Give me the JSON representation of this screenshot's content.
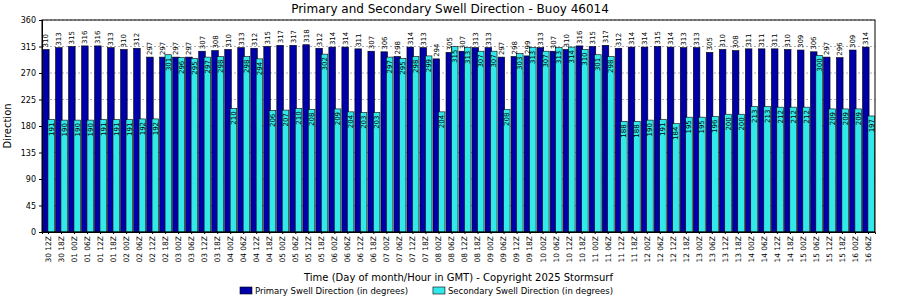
{
  "chart_data": {
    "type": "bar",
    "title": "Primary and Secondary Swell Direction - Buoy 46014",
    "x_label": "Time (Day of month/Hour in GMT) - Copyright 2025 Stormsurf",
    "y_label": "Direction",
    "categories": [
      "30 12Z",
      "30 18Z",
      "01 00Z",
      "01 06Z",
      "01 12Z",
      "01 18Z",
      "02 00Z",
      "02 06Z",
      "02 12Z",
      "02 18Z",
      "03 00Z",
      "03 06Z",
      "03 12Z",
      "03 18Z",
      "04 00Z",
      "04 06Z",
      "04 12Z",
      "04 18Z",
      "05 00Z",
      "05 06Z",
      "05 12Z",
      "05 18Z",
      "06 00Z",
      "06 06Z",
      "06 12Z",
      "06 18Z",
      "07 00Z",
      "07 06Z",
      "07 12Z",
      "07 18Z",
      "08 00Z",
      "08 06Z",
      "08 12Z",
      "08 18Z",
      "09 00Z",
      "09 06Z",
      "09 12Z",
      "09 18Z",
      "10 00Z",
      "10 06Z",
      "10 12Z",
      "10 18Z",
      "11 00Z",
      "11 06Z",
      "11 12Z",
      "11 18Z",
      "12 00Z",
      "12 06Z",
      "12 12Z",
      "12 18Z",
      "13 00Z",
      "13 06Z",
      "13 12Z",
      "13 18Z",
      "14 00Z",
      "14 06Z",
      "14 12Z",
      "14 18Z",
      "15 00Z",
      "15 06Z",
      "15 12Z",
      "15 18Z",
      "16 00Z",
      "16 06Z"
    ],
    "series": [
      {
        "name": "Primary Swell Direction (in degrees)",
        "color": "#0000a8",
        "values": [
          310,
          313,
          315,
          316,
          316,
          313,
          310,
          312,
          297,
          297,
          297,
          297,
          307,
          308,
          310,
          313,
          312,
          315,
          317,
          317,
          318,
          312,
          314,
          314,
          311,
          307,
          306,
          298,
          314,
          313,
          294,
          305,
          307,
          313,
          313,
          297,
          298,
          299,
          313,
          307,
          310,
          316,
          315,
          317,
          312,
          314,
          314,
          315,
          314,
          313,
          313,
          305,
          310,
          308,
          311,
          311,
          311,
          310,
          309,
          306,
          297,
          296,
          309,
          314
        ]
      },
      {
        "name": "Secondary Swell Direction (in degrees)",
        "color": "#33e8e8",
        "values": [
          191,
          190,
          190,
          190,
          191,
          191,
          191,
          192,
          192,
          301,
          296,
          295,
          297,
          298,
          210,
          298,
          294,
          206,
          207,
          210,
          208,
          302,
          209,
          204,
          203,
          203,
          297,
          295,
          298,
          299,
          204,
          315,
          313,
          307,
          307,
          208,
          303,
          313,
          307,
          313,
          314,
          310,
          301,
          298,
          188,
          188,
          190,
          191,
          184,
          195,
          195,
          196,
          200,
          200,
          213,
          213,
          212,
          212,
          212,
          300,
          209,
          209,
          209,
          197
        ]
      }
    ],
    "ylim": [
      0,
      360
    ],
    "yticks": [
      0,
      45,
      90,
      135,
      180,
      225,
      270,
      315,
      360
    ],
    "grid": true,
    "legend": "bottom",
    "data_labels": true
  }
}
